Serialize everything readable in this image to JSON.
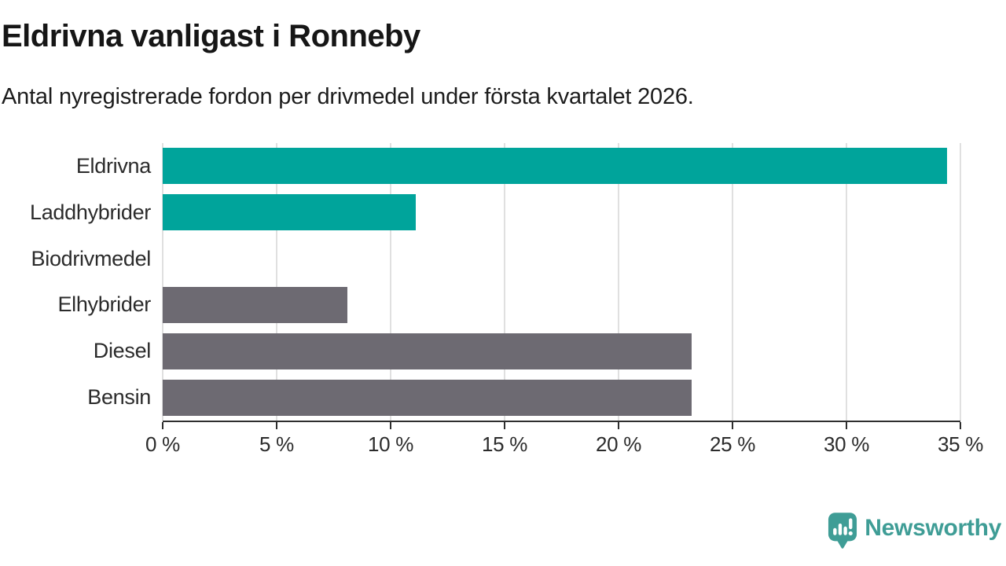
{
  "colors": {
    "accent_teal": "#00a49b",
    "neutral_gray": "#6d6a72",
    "title_text": "#161616",
    "axis_text": "#2b2b2b",
    "axis_line": "#2e2e2e",
    "gridline": "#e0e0e0",
    "brand_teal": "#3f9d96",
    "background": "#ffffff"
  },
  "chart_data": {
    "type": "bar",
    "orientation": "horizontal",
    "title": "Eldrivna vanligast i Ronneby",
    "subtitle": "Antal nyregistrerade fordon per drivmedel under första kvartalet 2026.",
    "categories": [
      "Eldrivna",
      "Laddhybrider",
      "Biodrivmedel",
      "Elhybrider",
      "Diesel",
      "Bensin"
    ],
    "values": [
      34.4,
      11.1,
      0,
      8.1,
      23.2,
      23.2
    ],
    "unit": "%",
    "xlim": [
      0,
      35
    ],
    "x_tick_values": [
      0,
      5,
      10,
      15,
      20,
      25,
      30,
      35
    ],
    "x_ticks": [
      "0 %",
      "5 %",
      "10 %",
      "15 %",
      "20 %",
      "25 %",
      "30 %",
      "35 %"
    ],
    "bar_colors": [
      "#00a49b",
      "#00a49b",
      "#6d6a72",
      "#6d6a72",
      "#6d6a72",
      "#6d6a72"
    ],
    "grid": "vertical-only",
    "legend": "none"
  },
  "footer": {
    "brand_name": "Newsworthy",
    "logo_icon": "bar-chart-speech-bubble-icon"
  }
}
